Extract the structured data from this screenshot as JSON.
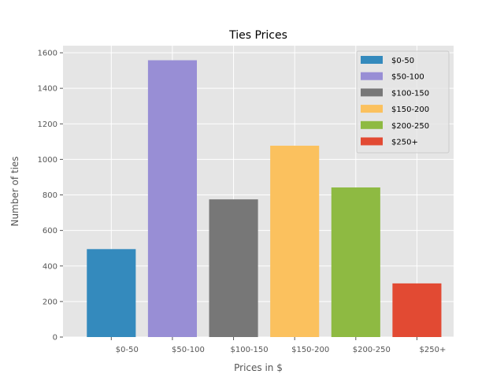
{
  "chart_data": {
    "type": "bar",
    "title": "Ties Prices",
    "xlabel": "Prices in $",
    "ylabel": "Number of ties",
    "categories": [
      "$0-50",
      "$50-100",
      "$100-150",
      "$150-200",
      "$200-250",
      "$250+"
    ],
    "values": [
      495,
      1558,
      775,
      1077,
      842,
      302
    ],
    "colors": [
      "#348ABD",
      "#988ED5",
      "#777777",
      "#FBC15E",
      "#8EBA42",
      "#E24A33"
    ],
    "ylim": [
      0,
      1640
    ],
    "yticks": [
      0,
      200,
      400,
      600,
      800,
      1000,
      1200,
      1400,
      1600
    ],
    "grid": true,
    "legend": {
      "placement": "top-right",
      "entries": [
        "$0-50",
        "$50-100",
        "$100-150",
        "$150-200",
        "$200-250",
        "$250+"
      ]
    }
  }
}
